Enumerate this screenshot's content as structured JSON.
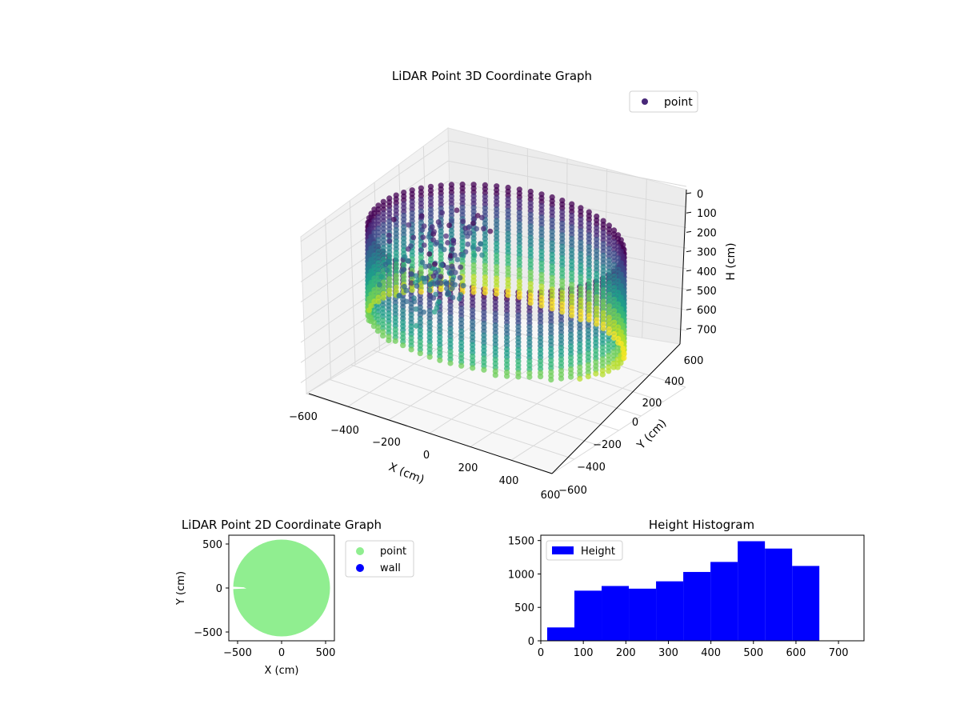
{
  "chart_data": [
    {
      "id": "lidar-3d",
      "type": "scatter",
      "title": "LiDAR Point 3D Coordinate Graph",
      "xlabel": "X (cm)",
      "ylabel": "Y (cm)",
      "zlabel": "H (cm)",
      "xlim": [
        -600,
        600
      ],
      "ylim": [
        -600,
        600
      ],
      "zlim": [
        0,
        750
      ],
      "z_inverted": true,
      "x_ticks": [
        "−600",
        "−400",
        "−200",
        "0",
        "200",
        "400",
        "600"
      ],
      "y_ticks": [
        "−600",
        "−400",
        "−200",
        "0",
        "200",
        "400",
        "600"
      ],
      "z_ticks": [
        "0",
        "100",
        "200",
        "300",
        "400",
        "500",
        "600",
        "700"
      ],
      "colormap": "viridis",
      "legend": [
        {
          "label": "point",
          "color": "#482878"
        }
      ],
      "legend_position": "upper-right",
      "grid": true,
      "series": [
        {
          "name": "point",
          "shape": "cylindrical wall",
          "radius_cm": 550,
          "height_range": [
            0,
            700
          ]
        }
      ]
    },
    {
      "id": "lidar-2d",
      "type": "scatter",
      "title": "LiDAR Point 2D Coordinate Graph",
      "xlabel": "X (cm)",
      "ylabel": "Y (cm)",
      "xlim": [
        -600,
        600
      ],
      "ylim": [
        -600,
        600
      ],
      "x_ticks": [
        "−500",
        "0",
        "500"
      ],
      "y_ticks": [
        "−500",
        "0",
        "500"
      ],
      "legend": [
        {
          "label": "point",
          "color": "#90ee90"
        },
        {
          "label": "wall",
          "color": "#0000ff"
        }
      ],
      "legend_position": "outside-right",
      "series": [
        {
          "name": "point",
          "color": "#90ee90",
          "shape": "filled disc",
          "radius_cm": 550
        },
        {
          "name": "wall",
          "color": "#0000ff",
          "points": []
        }
      ]
    },
    {
      "id": "height-hist",
      "type": "bar",
      "title": "Height Histogram",
      "xlabel": "",
      "ylabel": "",
      "xlim": [
        0,
        760
      ],
      "ylim": [
        0,
        1580
      ],
      "x_ticks": [
        "0",
        "100",
        "200",
        "300",
        "400",
        "500",
        "600",
        "700"
      ],
      "y_ticks": [
        "0",
        "500",
        "1000",
        "1500"
      ],
      "legend": [
        {
          "label": "Height",
          "color": "#0000ff"
        }
      ],
      "legend_position": "upper-left",
      "bar_color": "#0000ff",
      "bins": [
        {
          "x0": 15,
          "x1": 79,
          "count": 200
        },
        {
          "x0": 79,
          "x1": 143,
          "count": 750
        },
        {
          "x0": 143,
          "x1": 207,
          "count": 820
        },
        {
          "x0": 207,
          "x1": 271,
          "count": 780
        },
        {
          "x0": 271,
          "x1": 335,
          "count": 890
        },
        {
          "x0": 335,
          "x1": 399,
          "count": 1030
        },
        {
          "x0": 399,
          "x1": 463,
          "count": 1180
        },
        {
          "x0": 463,
          "x1": 527,
          "count": 1490
        },
        {
          "x0": 527,
          "x1": 591,
          "count": 1380
        },
        {
          "x0": 591,
          "x1": 655,
          "count": 1120
        }
      ]
    }
  ]
}
